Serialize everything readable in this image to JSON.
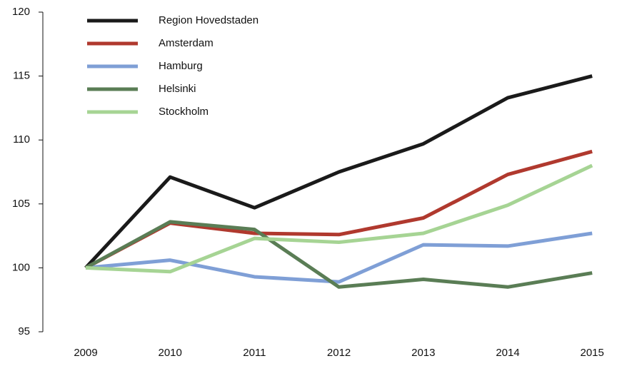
{
  "chart_data": {
    "type": "line",
    "categories": [
      "2009",
      "2010",
      "2011",
      "2012",
      "2013",
      "2014",
      "2015"
    ],
    "series": [
      {
        "name": "Region Hovedstaden",
        "color": "#1a1a1a",
        "values": [
          100,
          107.1,
          104.7,
          107.5,
          109.7,
          113.3,
          115.0
        ]
      },
      {
        "name": "Amsterdam",
        "color": "#b0392e",
        "values": [
          100,
          103.5,
          102.7,
          102.6,
          103.9,
          107.3,
          109.1
        ]
      },
      {
        "name": "Hamburg",
        "color": "#7f9fd6",
        "values": [
          100,
          100.6,
          99.3,
          98.9,
          101.8,
          101.7,
          102.7
        ]
      },
      {
        "name": "Helsinki",
        "color": "#5a7d55",
        "values": [
          100,
          103.6,
          103.0,
          98.5,
          99.1,
          98.5,
          99.6
        ]
      },
      {
        "name": "Stockholm",
        "color": "#a6d494",
        "values": [
          100,
          99.7,
          102.3,
          102.0,
          102.7,
          104.9,
          108.0
        ]
      }
    ],
    "ylim": [
      95,
      120
    ],
    "yticks": [
      95,
      100,
      105,
      110,
      115,
      120
    ],
    "legend": "upper left"
  }
}
